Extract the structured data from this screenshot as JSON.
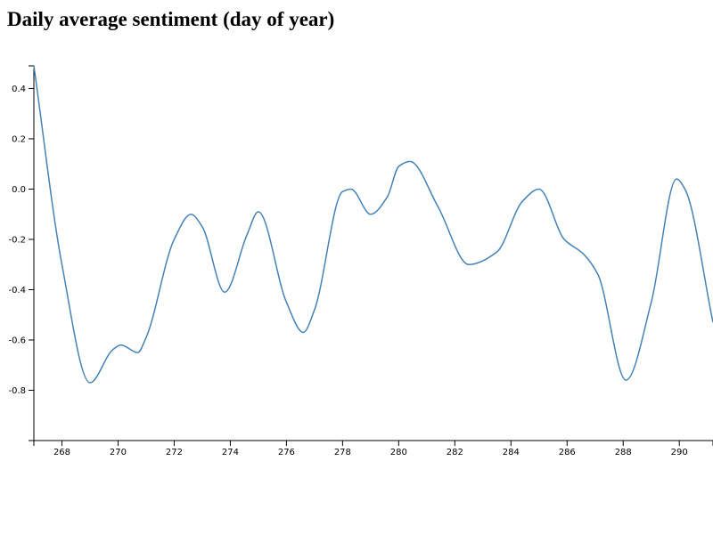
{
  "chart_data": {
    "type": "line",
    "title": "Daily average sentiment (day of year)",
    "xlabel": "",
    "ylabel": "",
    "xlim": [
      267,
      291.2
    ],
    "ylim": [
      -1.0,
      0.49
    ],
    "x_ticks": [
      268,
      270,
      272,
      274,
      276,
      278,
      280,
      282,
      284,
      286,
      288,
      290
    ],
    "y_ticks": [
      -0.8,
      -0.6,
      -0.4,
      -0.2,
      0.0,
      0.2,
      0.4
    ],
    "x_tick_labels": [
      "268",
      "270",
      "272",
      "274",
      "276",
      "278",
      "280",
      "282",
      "284",
      "286",
      "288",
      "290"
    ],
    "y_tick_labels": [
      "-0.8",
      "-0.6",
      "-0.4",
      "-0.2",
      "0.0",
      "0.2",
      "0.4"
    ],
    "grid": false,
    "line_color": "#4682b4",
    "series": [
      {
        "x": [
          267,
          268,
          269,
          269.8,
          270.1,
          270.7,
          271,
          272,
          272.6,
          273,
          273.8,
          274.6,
          275,
          276,
          276.6,
          277,
          278,
          278.3,
          279,
          279.6,
          280,
          280.4,
          281.4,
          282.5,
          283.5,
          284.4,
          285,
          285.9,
          286.6,
          287.1,
          288.1,
          289,
          289.9,
          290.2,
          291.2
        ],
        "y": [
          0.49,
          -0.3,
          -0.77,
          -0.64,
          -0.62,
          -0.65,
          -0.59,
          -0.2,
          -0.1,
          -0.15,
          -0.41,
          -0.18,
          -0.09,
          -0.45,
          -0.57,
          -0.48,
          -0.01,
          0.0,
          -0.1,
          -0.03,
          0.09,
          0.11,
          -0.07,
          -0.3,
          -0.25,
          -0.05,
          0.0,
          -0.2,
          -0.26,
          -0.34,
          -0.76,
          -0.45,
          0.04,
          0.0,
          -0.53
        ]
      }
    ]
  }
}
